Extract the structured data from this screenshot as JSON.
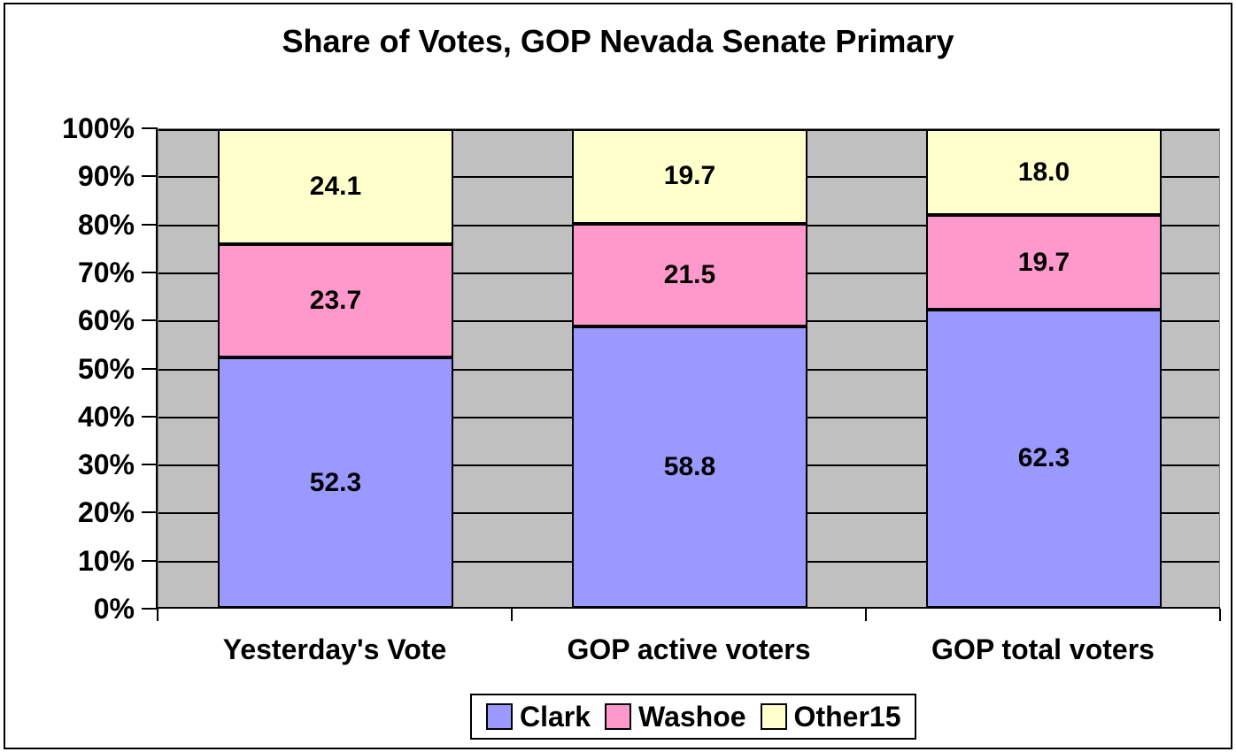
{
  "chart_data": {
    "type": "bar",
    "subtype": "stacked-100",
    "title": "Share of Votes, GOP Nevada Senate Primary",
    "categories": [
      "Yesterday's Vote",
      "GOP active voters",
      "GOP total voters"
    ],
    "series": [
      {
        "name": "Clark",
        "color": "#9999FF",
        "values": [
          52.3,
          58.8,
          62.3
        ]
      },
      {
        "name": "Washoe",
        "color": "#FF99CC",
        "values": [
          23.7,
          21.5,
          19.7
        ]
      },
      {
        "name": "Other15",
        "color": "#FFFFCC",
        "values": [
          24.1,
          19.7,
          18.0
        ]
      }
    ],
    "value_decimals": 1,
    "xlabel": "",
    "ylabel": "",
    "y_axis": {
      "min": 0,
      "max": 100,
      "tick_step": 10,
      "ticks": [
        "0%",
        "10%",
        "20%",
        "30%",
        "40%",
        "50%",
        "60%",
        "70%",
        "80%",
        "90%",
        "100%"
      ]
    },
    "grid": true,
    "plot_background": "#C0C0C0",
    "gridline_color": "#000000",
    "legend_position": "bottom-center",
    "legend_entries": [
      "Clark",
      "Washoe",
      "Other15"
    ]
  }
}
